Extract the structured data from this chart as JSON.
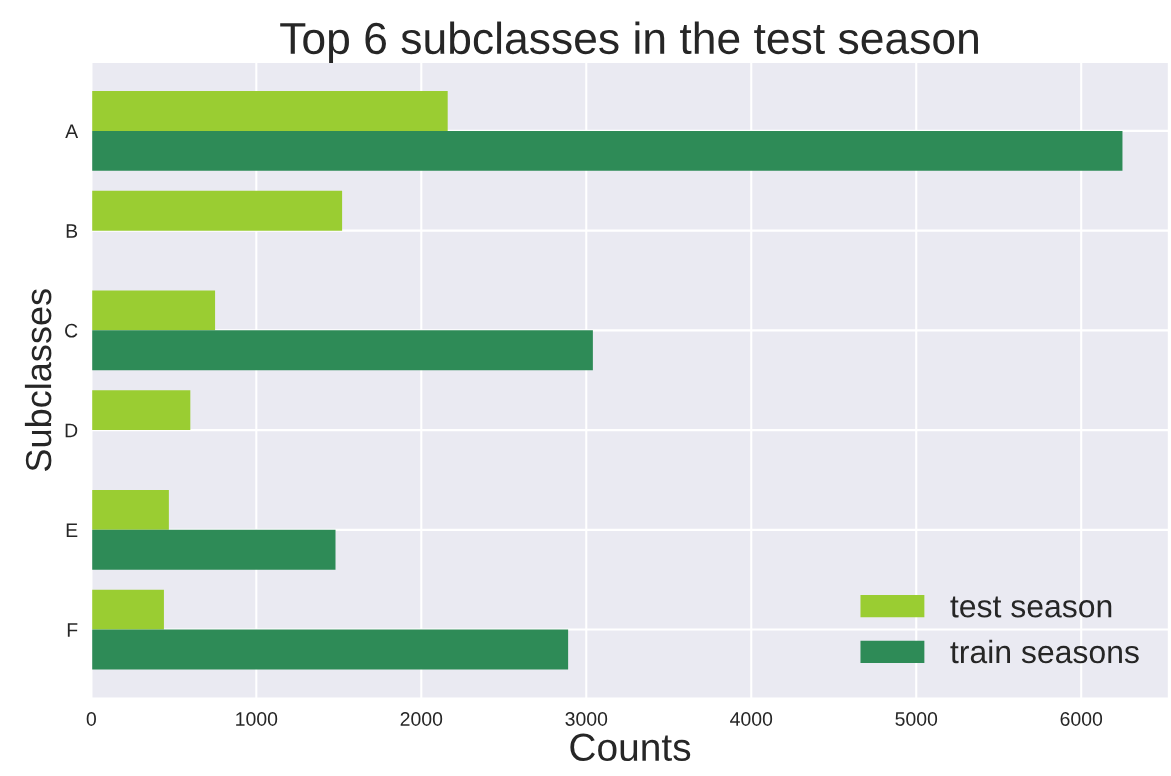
{
  "chart_data": {
    "type": "bar",
    "orientation": "horizontal",
    "title": "Top 6 subclasses in the test season",
    "xlabel": "Counts",
    "ylabel": "Subclasses",
    "categories": [
      "A",
      "B",
      "C",
      "D",
      "E",
      "F"
    ],
    "series": [
      {
        "name": "test season",
        "color": "#9acd32",
        "values": [
          2160,
          1520,
          750,
          600,
          470,
          440
        ]
      },
      {
        "name": "train seasons",
        "color": "#2e8b57",
        "values": [
          6250,
          null,
          3040,
          null,
          1480,
          2890
        ]
      }
    ],
    "xlim": [
      0,
      6530
    ],
    "xticks": [
      0,
      1000,
      2000,
      3000,
      4000,
      5000,
      6000
    ],
    "grid": true,
    "legend": "bottom right"
  }
}
